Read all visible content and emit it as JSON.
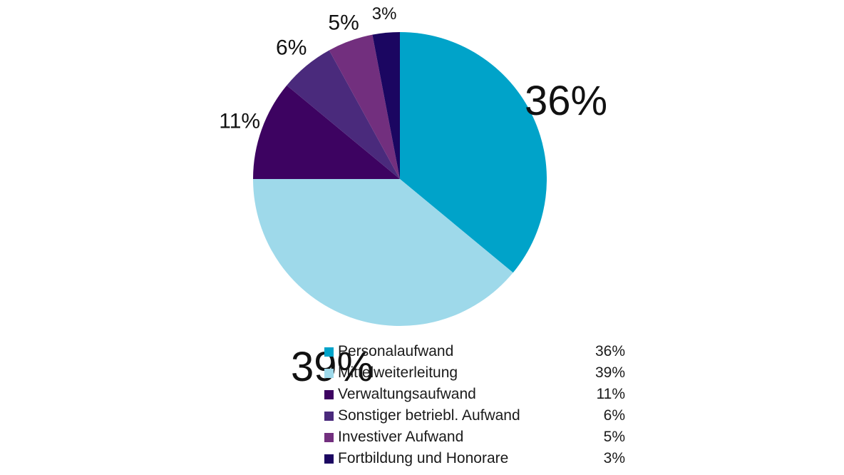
{
  "chart_data": {
    "type": "pie",
    "title": "",
    "slices": [
      {
        "name": "Personalaufwand",
        "value": 36,
        "label": "36%",
        "color": "#00a3c9"
      },
      {
        "name": "Mittelweiterleitung",
        "value": 39,
        "label": "39%",
        "color": "#9ed9ea"
      },
      {
        "name": "Verwaltungsaufwand",
        "value": 11,
        "label": "11%",
        "color": "#3d0361"
      },
      {
        "name": "Sonstiger betriebl. Aufwand",
        "value": 6,
        "label": "6%",
        "color": "#4a2a7c"
      },
      {
        "name": "Investiver Aufwand",
        "value": 5,
        "label": "5%",
        "color": "#722f7e"
      },
      {
        "name": "Fortbildung und Honorare",
        "value": 3,
        "label": "3%",
        "color": "#1b0661"
      }
    ],
    "start_angle_deg": 0,
    "direction": "clockwise",
    "legend_position": "bottom"
  }
}
